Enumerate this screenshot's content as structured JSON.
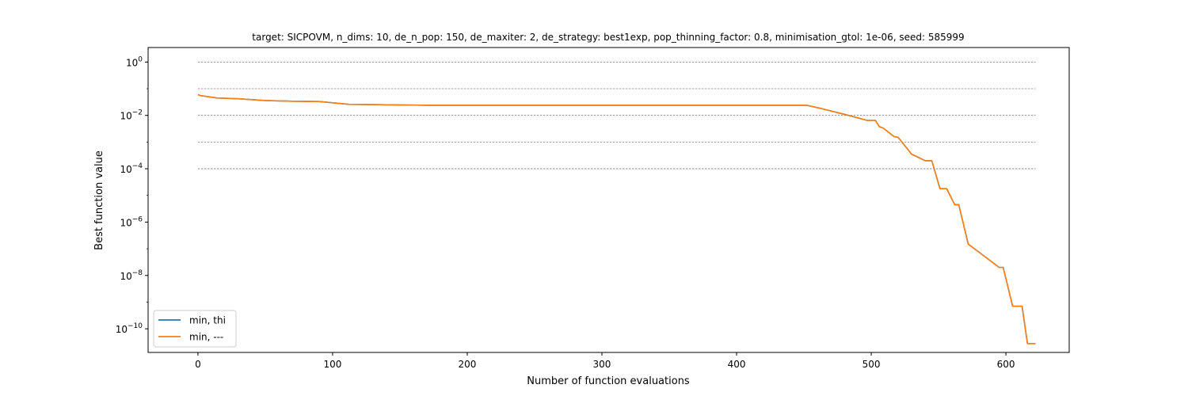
{
  "chart_data": {
    "type": "line",
    "title": "target: SICPOVM, n_dims: 10, de_n_pop: 150, de_maxiter: 2, de_strategy: best1exp, pop_thinning_factor: 0.8, minimisation_gtol: 1e-06, seed: 585999",
    "xlabel": "Number of function evaluations",
    "ylabel": "Best function value",
    "yscale": "log",
    "xlim": [
      -37,
      647
    ],
    "ylim": [
      1.3e-11,
      3.5
    ],
    "xticks": [
      0,
      100,
      200,
      300,
      400,
      500,
      600
    ],
    "yticks": [
      {
        "value": 1,
        "base": "10",
        "exp": "0"
      },
      {
        "value": 0.01,
        "base": "10",
        "exp": "−2"
      },
      {
        "value": 0.0001,
        "base": "10",
        "exp": "−4"
      },
      {
        "value": 1e-06,
        "base": "10",
        "exp": "−6"
      },
      {
        "value": 1e-08,
        "base": "10",
        "exp": "−8"
      },
      {
        "value": 1e-10,
        "base": "10",
        "exp": "−10"
      }
    ],
    "reference_lines": [
      1,
      0.1,
      0.01,
      0.001,
      0.0001
    ],
    "legend_position": "lower left",
    "series": [
      {
        "name": "min, thi",
        "color": "#1f77b4",
        "x": [
          0,
          2,
          14,
          30,
          50,
          70,
          90,
          112,
          140,
          172,
          300,
          452,
          463,
          480,
          497,
          503,
          506,
          509,
          517,
          520,
          530,
          533,
          540,
          545,
          551,
          556,
          562,
          565,
          572,
          595,
          598,
          605,
          610,
          612,
          616,
          619,
          622
        ],
        "y": [
          0.06,
          0.055,
          0.045,
          0.042,
          0.036,
          0.034,
          0.033,
          0.026,
          0.025,
          0.024,
          0.024,
          0.024,
          0.018,
          0.011,
          0.0065,
          0.0065,
          0.0038,
          0.0033,
          0.0016,
          0.0015,
          0.00035,
          0.0003,
          0.0002,
          0.0002,
          1.8e-05,
          1.8e-05,
          4.5e-06,
          4.5e-06,
          1.5e-07,
          2e-08,
          2e-08,
          7e-10,
          7e-10,
          7e-10,
          2.8e-11,
          2.8e-11,
          2.8e-11
        ]
      },
      {
        "name": "min, ---",
        "color": "#ff7f0e",
        "x": [
          0,
          2,
          14,
          30,
          50,
          70,
          90,
          112,
          140,
          172,
          300,
          452,
          463,
          480,
          497,
          503,
          506,
          509,
          517,
          520,
          530,
          533,
          540,
          545,
          551,
          556,
          562,
          565,
          572,
          595,
          598,
          605,
          610,
          612,
          616,
          619,
          622
        ],
        "y": [
          0.06,
          0.055,
          0.045,
          0.042,
          0.036,
          0.034,
          0.033,
          0.026,
          0.025,
          0.024,
          0.024,
          0.024,
          0.018,
          0.011,
          0.0065,
          0.0065,
          0.0038,
          0.0033,
          0.0016,
          0.0015,
          0.00035,
          0.0003,
          0.0002,
          0.0002,
          1.8e-05,
          1.8e-05,
          4.5e-06,
          4.5e-06,
          1.5e-07,
          2e-08,
          2e-08,
          7e-10,
          7e-10,
          7e-10,
          2.8e-11,
          2.8e-11,
          2.8e-11
        ]
      }
    ]
  }
}
